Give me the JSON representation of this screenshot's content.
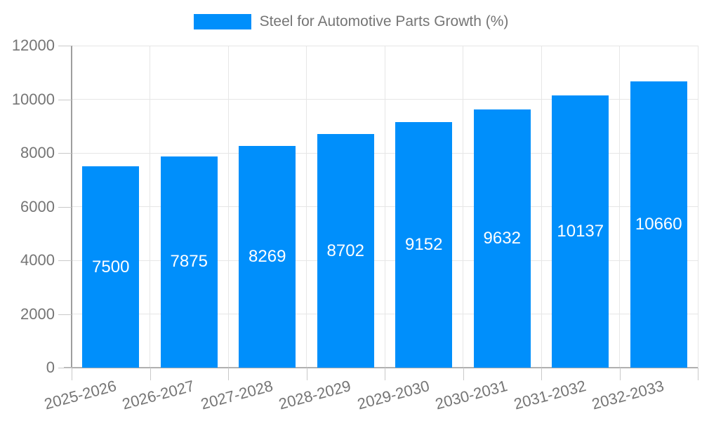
{
  "chart_data": {
    "type": "bar",
    "title": "",
    "legend": {
      "position": "top",
      "label": "Steel for Automotive Parts Growth (%)"
    },
    "categories": [
      "2025-2026",
      "2026-2027",
      "2027-2028",
      "2028-2029",
      "2029-2030",
      "2030-2031",
      "2031-2032",
      "2032-2033"
    ],
    "values": [
      7500,
      7875,
      8269,
      8702,
      9152,
      9632,
      10137,
      10660
    ],
    "bar_value_labels": [
      "7500",
      "7875",
      "8269",
      "8702",
      "9152",
      "9632",
      "10137",
      "10660"
    ],
    "xlabel": "",
    "ylabel": "",
    "ylim": [
      0,
      12000
    ],
    "yticks": [
      0,
      2000,
      4000,
      6000,
      8000,
      10000,
      12000
    ],
    "grid": true,
    "x_tick_rotation_deg": -15,
    "bar_label_position": "center-inside",
    "colors": {
      "bar": "#008FFB",
      "bar_value_text": "#FFFFFF",
      "axis_text": "#757575",
      "y_axis_line": "#9E9E9E",
      "x_axis_line": "#B0B0B0",
      "gridline": "#E6E6E6",
      "tick_mark": "#C9C9C9",
      "background": "#FFFFFF"
    }
  }
}
